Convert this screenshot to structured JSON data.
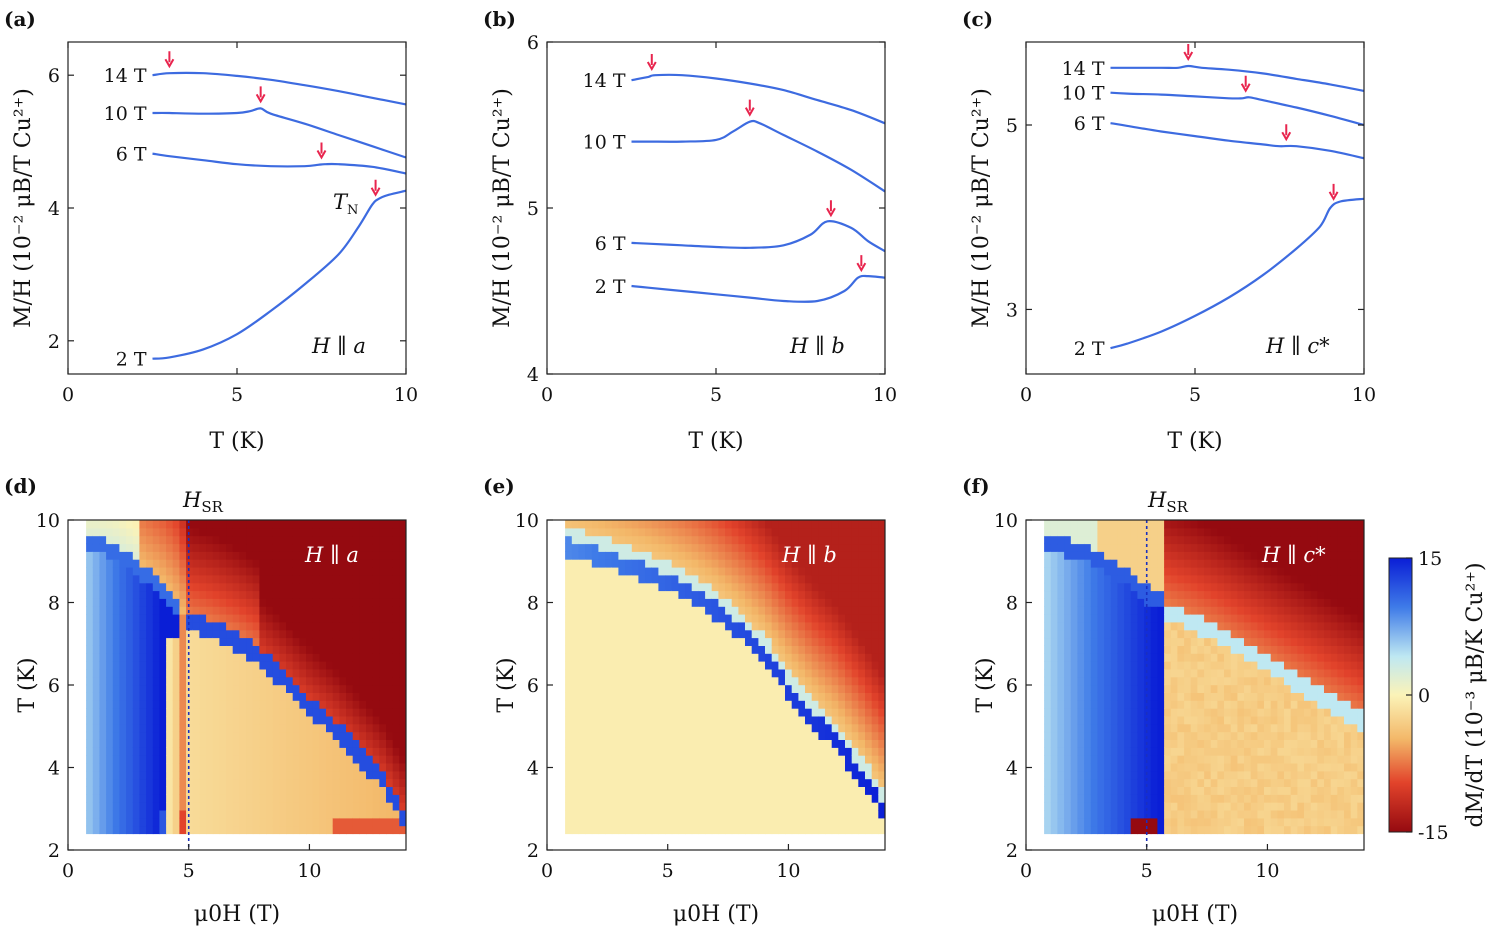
{
  "chart_data": [
    {
      "type": "line",
      "panel": "(a)",
      "xlabel": "T (K)",
      "ylabel": "M/H (10⁻² μB/T Cu²⁺)",
      "xlim": [
        0,
        10
      ],
      "ylim": [
        1.5,
        6.5
      ],
      "xticks": [
        "0",
        "5",
        "10"
      ],
      "xtick_values": [
        0,
        5,
        10
      ],
      "yticks": [
        "2",
        "4",
        "6"
      ],
      "ytick_values": [
        2,
        4,
        6
      ],
      "annotation": "H ∥ a",
      "tn_label": "T",
      "tn_sub": "N",
      "series": [
        {
          "name": "14 T",
          "x": [
            2.5,
            3.0,
            4,
            5,
            6,
            7,
            8,
            9,
            10
          ],
          "y": [
            6.0,
            6.03,
            6.03,
            5.99,
            5.93,
            5.85,
            5.76,
            5.66,
            5.56
          ],
          "arrow_x": 3.0
        },
        {
          "name": "10 T",
          "x": [
            2.5,
            3,
            4,
            5,
            5.4,
            5.7,
            6,
            7,
            8,
            9,
            10
          ],
          "y": [
            5.43,
            5.43,
            5.42,
            5.43,
            5.46,
            5.5,
            5.42,
            5.27,
            5.1,
            4.93,
            4.76
          ],
          "arrow_x": 5.7
        },
        {
          "name": "6 T",
          "x": [
            2.5,
            3,
            4,
            5,
            6,
            7,
            7.4,
            7.6,
            8,
            9,
            10
          ],
          "y": [
            4.82,
            4.78,
            4.72,
            4.66,
            4.63,
            4.63,
            4.65,
            4.66,
            4.66,
            4.62,
            4.52
          ],
          "arrow_x": 7.5
        },
        {
          "name": "2 T",
          "x": [
            2.5,
            3,
            4,
            5,
            6,
            7,
            8,
            8.6,
            9.0,
            9.2,
            9.5,
            10
          ],
          "y": [
            1.73,
            1.75,
            1.87,
            2.1,
            2.45,
            2.85,
            3.3,
            3.72,
            4.05,
            4.14,
            4.2,
            4.26
          ],
          "arrow_x": 9.1
        }
      ]
    },
    {
      "type": "line",
      "panel": "(b)",
      "xlabel": "T (K)",
      "ylabel": "M/H (10⁻² μB/T Cu²⁺)",
      "xlim": [
        0,
        10
      ],
      "ylim": [
        4.0,
        6.0
      ],
      "xticks": [
        "0",
        "5",
        "10"
      ],
      "xtick_values": [
        0,
        5,
        10
      ],
      "yticks": [
        "4",
        "5",
        "6"
      ],
      "ytick_values": [
        4,
        5,
        6
      ],
      "annotation": "H ∥ b",
      "series": [
        {
          "name": "14 T",
          "x": [
            2.5,
            3.0,
            3.2,
            4,
            5,
            6,
            7,
            8,
            9,
            10
          ],
          "y": [
            5.77,
            5.79,
            5.8,
            5.8,
            5.78,
            5.75,
            5.71,
            5.65,
            5.59,
            5.51
          ],
          "arrow_x": 3.1
        },
        {
          "name": "10 T",
          "x": [
            2.5,
            3,
            4,
            5,
            5.5,
            6.0,
            6.3,
            7,
            8,
            9,
            10
          ],
          "y": [
            5.4,
            5.4,
            5.4,
            5.41,
            5.46,
            5.52,
            5.51,
            5.44,
            5.34,
            5.23,
            5.1
          ],
          "arrow_x": 6.0
        },
        {
          "name": "6 T",
          "x": [
            2.5,
            3,
            4,
            5,
            6,
            7,
            7.8,
            8.3,
            9,
            9.5,
            10
          ],
          "y": [
            4.79,
            4.785,
            4.775,
            4.765,
            4.76,
            4.775,
            4.84,
            4.92,
            4.88,
            4.8,
            4.74
          ],
          "arrow_x": 8.4
        },
        {
          "name": "2 T",
          "x": [
            2.5,
            3,
            4,
            5,
            6,
            7,
            8,
            8.8,
            9.2,
            9.5,
            10
          ],
          "y": [
            4.53,
            4.52,
            4.5,
            4.48,
            4.46,
            4.44,
            4.44,
            4.5,
            4.58,
            4.59,
            4.58
          ],
          "arrow_x": 9.3
        }
      ]
    },
    {
      "type": "line",
      "panel": "(c)",
      "xlabel": "T (K)",
      "ylabel": "M/H (10⁻² μB/T Cu²⁺)",
      "xlim": [
        0,
        10
      ],
      "ylim": [
        2.3,
        5.9
      ],
      "xticks": [
        "0",
        "5",
        "10"
      ],
      "xtick_values": [
        0,
        5,
        10
      ],
      "yticks": [
        "3",
        "5"
      ],
      "ytick_values": [
        3,
        5
      ],
      "annotation": "H ∥ c*",
      "series": [
        {
          "name": "14 T",
          "x": [
            2.5,
            3,
            4,
            4.5,
            4.8,
            5.2,
            6,
            7,
            8,
            9,
            10
          ],
          "y": [
            5.62,
            5.62,
            5.62,
            5.62,
            5.64,
            5.62,
            5.6,
            5.56,
            5.5,
            5.44,
            5.37
          ],
          "arrow_x": 4.8
        },
        {
          "name": "10 T",
          "x": [
            2.5,
            3,
            4,
            5,
            6,
            6.4,
            6.6,
            7,
            8,
            9,
            10
          ],
          "y": [
            5.35,
            5.34,
            5.33,
            5.31,
            5.29,
            5.29,
            5.3,
            5.27,
            5.19,
            5.1,
            5.0
          ],
          "arrow_x": 6.5
        },
        {
          "name": "6 T",
          "x": [
            2.5,
            3,
            4,
            5,
            6,
            7,
            7.5,
            8,
            9,
            10
          ],
          "y": [
            5.02,
            4.99,
            4.93,
            4.88,
            4.83,
            4.79,
            4.77,
            4.77,
            4.72,
            4.64
          ],
          "arrow_x": 7.7
        },
        {
          "name": "2 T",
          "x": [
            2.5,
            3,
            4,
            5,
            6,
            7,
            8,
            8.7,
            9.0,
            9.3,
            10
          ],
          "y": [
            2.58,
            2.63,
            2.76,
            2.93,
            3.13,
            3.37,
            3.66,
            3.9,
            4.1,
            4.17,
            4.2
          ],
          "arrow_x": 9.1
        }
      ]
    },
    {
      "type": "heatmap",
      "panel": "(d)",
      "xlabel": "μ0H (T)",
      "ylabel": "T (K)",
      "xlim": [
        0,
        14
      ],
      "ylim": [
        2,
        10
      ],
      "xticks": [
        "0",
        "5",
        "10"
      ],
      "xtick_values": [
        0,
        5,
        10
      ],
      "yticks": [
        "2",
        "4",
        "6",
        "8",
        "10"
      ],
      "ytick_values": [
        2,
        4,
        6,
        8,
        10
      ],
      "annotation": "H ∥ a",
      "hsr_label": "H",
      "hsr_sub": "SR",
      "hsr_field": 5,
      "data_range": {
        "field": [
          0.75,
          14
        ],
        "temperature": [
          2.4,
          10
        ]
      },
      "transition_curve": {
        "field": [
          4.8,
          6,
          7,
          8,
          9,
          10,
          11,
          12,
          13,
          14
        ],
        "temperature": [
          7.6,
          7.35,
          7.05,
          6.65,
          6.1,
          5.5,
          5.0,
          4.35,
          3.7,
          2.7
        ]
      },
      "low_field_boundary": {
        "field": [
          0.75,
          1.2,
          2,
          3,
          4,
          4.6
        ],
        "temperature": [
          9.2,
          9.2,
          9.05,
          8.6,
          8.1,
          7.6
        ]
      }
    },
    {
      "type": "heatmap",
      "panel": "(e)",
      "xlabel": "μ0H (T)",
      "ylabel": "T (K)",
      "xlim": [
        0,
        14
      ],
      "ylim": [
        2,
        10
      ],
      "xticks": [
        "0",
        "5",
        "10"
      ],
      "xtick_values": [
        0,
        5,
        10
      ],
      "yticks": [
        "2",
        "4",
        "6",
        "8",
        "10"
      ],
      "ytick_values": [
        2,
        4,
        6,
        8,
        10
      ],
      "annotation": "H ∥ b",
      "data_range": {
        "field": [
          0.75,
          14
        ],
        "temperature": [
          2.4,
          10
        ]
      },
      "transition_curve": {
        "field": [
          0.75,
          2,
          3,
          4,
          5,
          6,
          7,
          8,
          9,
          10,
          11,
          12,
          13,
          14
        ],
        "temperature": [
          9.35,
          9.15,
          8.95,
          8.75,
          8.5,
          8.2,
          7.8,
          7.3,
          6.7,
          5.9,
          5.2,
          4.6,
          3.8,
          2.9
        ]
      }
    },
    {
      "type": "heatmap",
      "panel": "(f)",
      "xlabel": "μ0H (T)",
      "ylabel": "T (K)",
      "xlim": [
        0,
        14
      ],
      "ylim": [
        2,
        10
      ],
      "xticks": [
        "0",
        "5",
        "10"
      ],
      "xtick_values": [
        0,
        5,
        10
      ],
      "yticks": [
        "2",
        "4",
        "6",
        "8",
        "10"
      ],
      "ytick_values": [
        2,
        4,
        6,
        8,
        10
      ],
      "annotation": "H ∥ c*",
      "hsr_label": "H",
      "hsr_sub": "SR",
      "hsr_field": 5,
      "data_range": {
        "field": [
          0.75,
          14
        ],
        "temperature": [
          2.4,
          10
        ]
      },
      "transition_curve": {
        "field": [
          5.8,
          7,
          8,
          9,
          10,
          11,
          12,
          13,
          14
        ],
        "temperature": [
          7.8,
          7.5,
          7.2,
          6.85,
          6.5,
          6.15,
          5.8,
          5.45,
          5.1
        ]
      },
      "low_field_boundary": {
        "field": [
          0.75,
          1.2,
          2,
          3,
          4,
          5,
          5.8
        ],
        "temperature": [
          9.2,
          9.2,
          9.1,
          8.85,
          8.5,
          8.0,
          7.8
        ]
      }
    }
  ],
  "colorbar": {
    "label": "dM/dT (10⁻³ μB/K Cu²⁺)",
    "ticks": [
      "15",
      "0",
      "-15"
    ],
    "tick_values": [
      15,
      0,
      -15
    ],
    "range": [
      -15,
      15
    ],
    "colors": {
      "high": "#0a1ed6",
      "mid": "#fbf3b8",
      "low": "#950a10"
    }
  },
  "style": {
    "curve_color": "#3d6be0",
    "arrow_color": "#e8254e",
    "hsr_line_color": "#1a2fbf"
  }
}
